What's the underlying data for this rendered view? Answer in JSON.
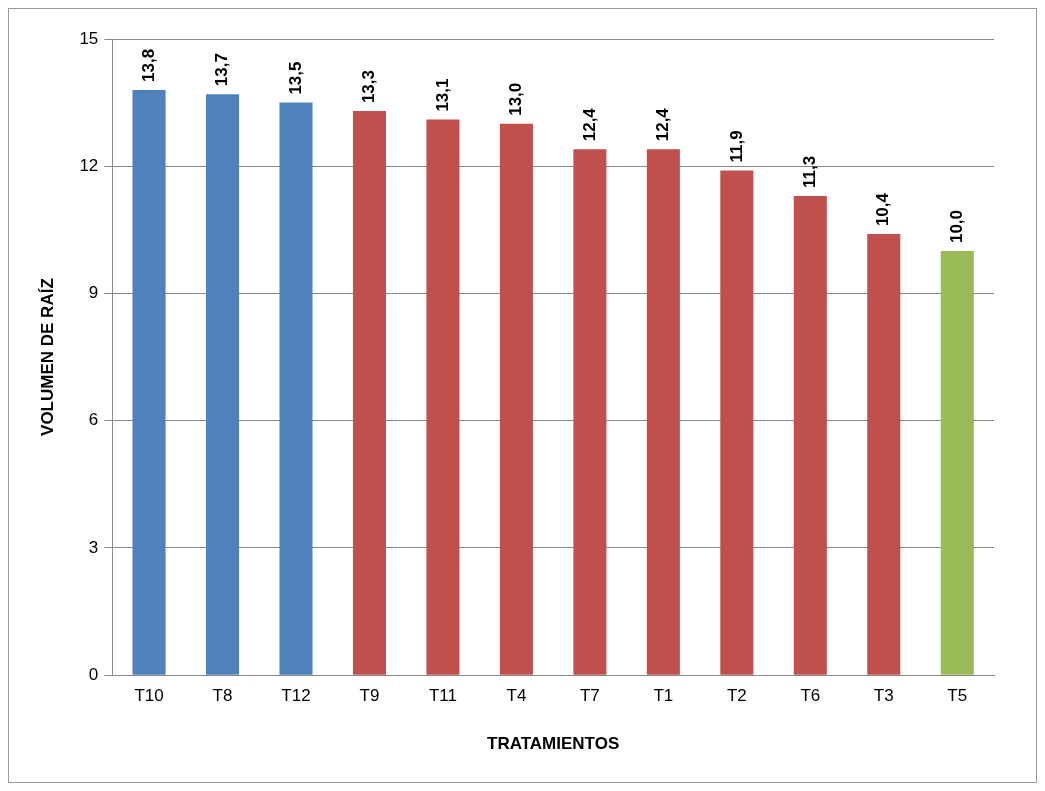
{
  "chart_data": {
    "type": "bar",
    "xlabel": "TRATAMIENTOS",
    "ylabel": "VOLUMEN DE RAÍZ",
    "categories": [
      "T10",
      "T8",
      "T12",
      "T9",
      "T11",
      "T4",
      "T7",
      "T1",
      "T2",
      "T6",
      "T3",
      "T5"
    ],
    "values": [
      13.8,
      13.7,
      13.5,
      13.3,
      13.1,
      13.0,
      12.4,
      12.4,
      11.9,
      11.3,
      10.4,
      10.0
    ],
    "value_labels": [
      "13,8",
      "13,7",
      "13,5",
      "13,3",
      "13,1",
      "13,0",
      "12,4",
      "12,4",
      "11,9",
      "11,3",
      "10,4",
      "10,0"
    ],
    "colors": [
      "#4f81bd",
      "#4f81bd",
      "#4f81bd",
      "#c0504d",
      "#c0504d",
      "#c0504d",
      "#c0504d",
      "#c0504d",
      "#c0504d",
      "#c0504d",
      "#c0504d",
      "#9bbb59"
    ],
    "ylim": [
      0,
      15
    ],
    "yticks": [
      0,
      3,
      6,
      9,
      12,
      15
    ],
    "grid": "y",
    "legend": false
  }
}
